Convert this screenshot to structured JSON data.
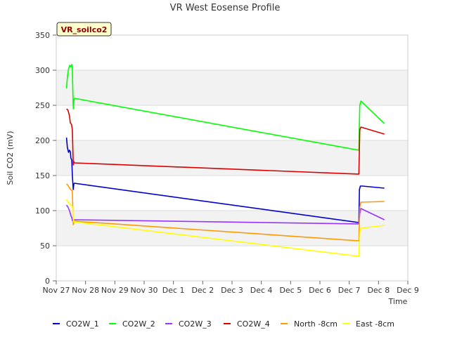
{
  "chart_data": {
    "type": "line",
    "title": "VR West Eosense Profile",
    "tag": "VR_soilco2",
    "xlabel": "Time",
    "ylabel": "Soil CO2 (mV)",
    "xlim": [
      0,
      12
    ],
    "ylim": [
      0,
      350
    ],
    "x_ticks": [
      {
        "value": 0,
        "label": "Nov 27"
      },
      {
        "value": 1,
        "label": "Nov 28"
      },
      {
        "value": 2,
        "label": "Nov 29"
      },
      {
        "value": 3,
        "label": "Nov 30"
      },
      {
        "value": 4,
        "label": "Dec 1"
      },
      {
        "value": 5,
        "label": "Dec 2"
      },
      {
        "value": 6,
        "label": "Dec 3"
      },
      {
        "value": 7,
        "label": "Dec 4"
      },
      {
        "value": 8,
        "label": "Dec 5"
      },
      {
        "value": 9,
        "label": "Dec 6"
      },
      {
        "value": 10,
        "label": "Dec 7"
      },
      {
        "value": 11,
        "label": "Dec 8"
      },
      {
        "value": 12,
        "label": "Dec 9"
      }
    ],
    "y_ticks": [
      0,
      50,
      100,
      150,
      200,
      250,
      300,
      350
    ],
    "series": [
      {
        "name": "CO2W_1",
        "color": "#0000cc",
        "x": [
          0.35,
          0.38,
          0.42,
          0.45,
          0.48,
          0.5,
          0.53,
          0.55,
          0.58,
          0.6,
          0.62,
          10.33,
          10.35,
          10.38,
          10.45,
          11.2
        ],
        "y": [
          204,
          190,
          183,
          186,
          184,
          175,
          172,
          150,
          130,
          138,
          139,
          83,
          130,
          135,
          135,
          132
        ]
      },
      {
        "name": "CO2W_2",
        "color": "#00ff00",
        "x": [
          0.35,
          0.38,
          0.42,
          0.46,
          0.5,
          0.53,
          0.55,
          0.58,
          0.6,
          0.62,
          10.33,
          10.36,
          10.4,
          11.2
        ],
        "y": [
          274,
          290,
          302,
          307,
          305,
          308,
          300,
          245,
          255,
          260,
          186,
          250,
          256,
          224
        ]
      },
      {
        "name": "CO2W_3",
        "color": "#9933ff",
        "x": [
          0.35,
          0.4,
          0.45,
          0.5,
          0.53,
          0.55,
          0.58,
          0.62,
          10.33,
          10.36,
          10.4,
          11.2
        ],
        "y": [
          108,
          105,
          100,
          93,
          90,
          86,
          85,
          87,
          81,
          95,
          103,
          87
        ]
      },
      {
        "name": "CO2W_4",
        "color": "#dd0000",
        "x": [
          0.35,
          0.4,
          0.45,
          0.48,
          0.52,
          0.55,
          0.58,
          0.6,
          0.62,
          10.33,
          10.36,
          10.4,
          11.2
        ],
        "y": [
          245,
          243,
          235,
          225,
          223,
          215,
          165,
          170,
          168,
          152,
          215,
          219,
          209
        ]
      },
      {
        "name": "North -8cm",
        "color": "#ff9900",
        "x": [
          0.35,
          0.4,
          0.45,
          0.5,
          0.55,
          0.58,
          0.6,
          0.62,
          10.33,
          10.36,
          10.4,
          11.2
        ],
        "y": [
          138,
          136,
          132,
          130,
          128,
          80,
          83,
          85,
          57,
          105,
          112,
          113
        ]
      },
      {
        "name": "East -8cm",
        "color": "#ffff00",
        "x": [
          0.35,
          0.4,
          0.45,
          0.5,
          0.55,
          0.58,
          0.6,
          0.62,
          10.33,
          10.36,
          10.4,
          11.2
        ],
        "y": [
          116,
          112,
          110,
          108,
          106,
          90,
          84,
          84,
          35,
          70,
          75,
          79
        ]
      }
    ]
  }
}
